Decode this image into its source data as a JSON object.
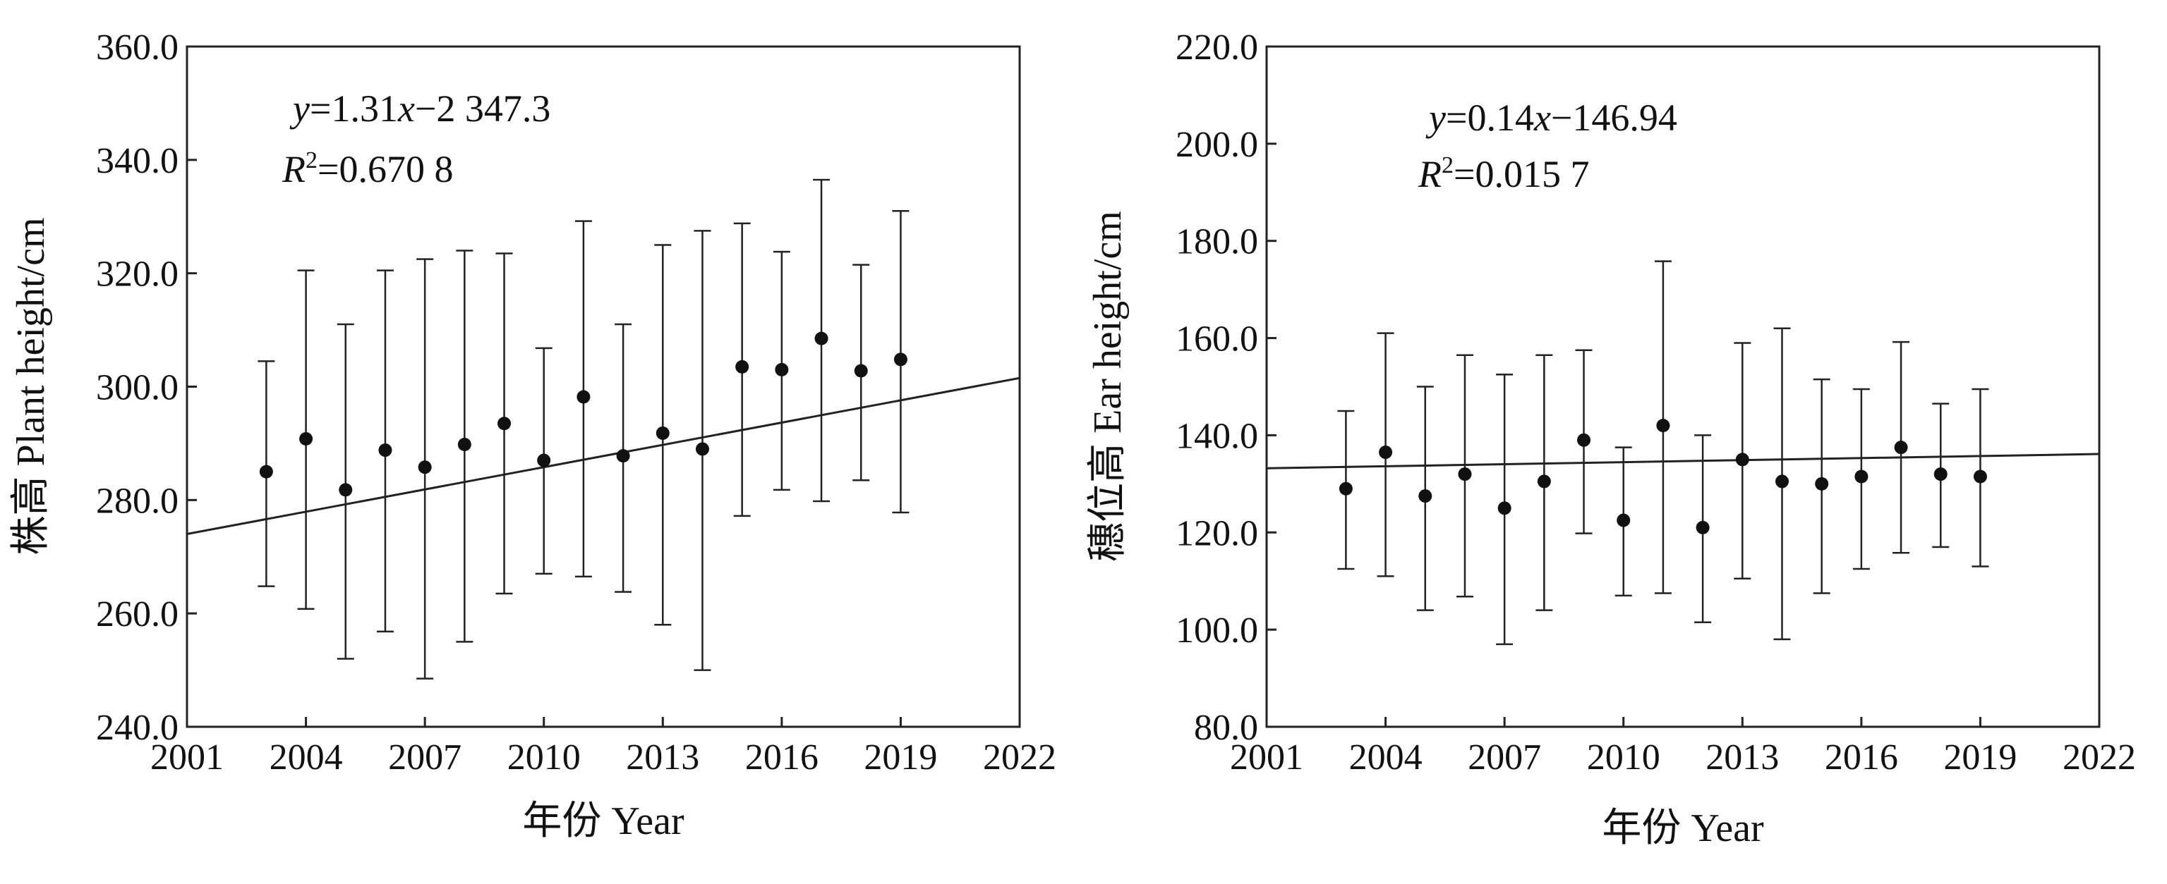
{
  "chart_data": [
    {
      "type": "scatter",
      "xlabel": "年份 Year",
      "ylabel": "株高 Plant height/cm",
      "xlim": [
        2001,
        2022
      ],
      "ylim": [
        240,
        360
      ],
      "x_ticks": [
        "2001",
        "2004",
        "2007",
        "2010",
        "2013",
        "2016",
        "2019",
        "2022"
      ],
      "y_ticks": [
        "240.0",
        "260.0",
        "280.0",
        "300.0",
        "320.0",
        "340.0",
        "360.0"
      ],
      "equation": "y=1.31x−2 347.3",
      "r_squared": "R2=0.670 8",
      "trendline": {
        "slope": 1.31,
        "intercept": -2347.3
      },
      "points": [
        {
          "x": 2003,
          "y": 285.0,
          "low": 264.8,
          "high": 304.5
        },
        {
          "x": 2004,
          "y": 290.8,
          "low": 260.8,
          "high": 320.5
        },
        {
          "x": 2005,
          "y": 281.8,
          "low": 252.0,
          "high": 311.0
        },
        {
          "x": 2006,
          "y": 288.8,
          "low": 256.8,
          "high": 320.5
        },
        {
          "x": 2007,
          "y": 285.8,
          "low": 248.5,
          "high": 322.5
        },
        {
          "x": 2008,
          "y": 289.8,
          "low": 255.0,
          "high": 324.0
        },
        {
          "x": 2009,
          "y": 293.5,
          "low": 263.5,
          "high": 323.5
        },
        {
          "x": 2010,
          "y": 287.0,
          "low": 267.0,
          "high": 306.8
        },
        {
          "x": 2011,
          "y": 298.2,
          "low": 266.5,
          "high": 329.2
        },
        {
          "x": 2012,
          "y": 287.8,
          "low": 263.8,
          "high": 311.0
        },
        {
          "x": 2013,
          "y": 291.8,
          "low": 258.0,
          "high": 325.0
        },
        {
          "x": 2014,
          "y": 289.0,
          "low": 250.0,
          "high": 327.5
        },
        {
          "x": 2015,
          "y": 303.5,
          "low": 277.2,
          "high": 328.8
        },
        {
          "x": 2016,
          "y": 303.0,
          "low": 281.8,
          "high": 323.8
        },
        {
          "x": 2017,
          "y": 308.5,
          "low": 279.8,
          "high": 336.5
        },
        {
          "x": 2018,
          "y": 302.8,
          "low": 283.5,
          "high": 321.5
        },
        {
          "x": 2019,
          "y": 304.8,
          "low": 277.8,
          "high": 331.0
        }
      ]
    },
    {
      "type": "scatter",
      "xlabel": "年份 Year",
      "ylabel": "穗位高 Ear height/cm",
      "xlim": [
        2001,
        2022
      ],
      "ylim": [
        80,
        220
      ],
      "x_ticks": [
        "2001",
        "2004",
        "2007",
        "2010",
        "2013",
        "2016",
        "2019",
        "2022"
      ],
      "y_ticks": [
        "80.0",
        "100.0",
        "120.0",
        "140.0",
        "160.0",
        "180.0",
        "200.0",
        "220.0"
      ],
      "equation": "y=0.14x−146.94",
      "r_squared": "R2=0.015 7",
      "trendline": {
        "slope": 0.14,
        "intercept": -146.94
      },
      "points": [
        {
          "x": 2003,
          "y": 129.0,
          "low": 112.5,
          "high": 145.0
        },
        {
          "x": 2004,
          "y": 136.5,
          "low": 111.0,
          "high": 161.0
        },
        {
          "x": 2005,
          "y": 127.5,
          "low": 104.0,
          "high": 150.0
        },
        {
          "x": 2006,
          "y": 132.0,
          "low": 106.8,
          "high": 156.5
        },
        {
          "x": 2007,
          "y": 125.0,
          "low": 97.0,
          "high": 152.5
        },
        {
          "x": 2008,
          "y": 130.5,
          "low": 104.0,
          "high": 156.5
        },
        {
          "x": 2009,
          "y": 139.0,
          "low": 119.8,
          "high": 157.5
        },
        {
          "x": 2010,
          "y": 122.5,
          "low": 107.0,
          "high": 137.5
        },
        {
          "x": 2011,
          "y": 142.0,
          "low": 107.5,
          "high": 175.8
        },
        {
          "x": 2012,
          "y": 121.0,
          "low": 101.5,
          "high": 140.0
        },
        {
          "x": 2013,
          "y": 135.0,
          "low": 110.5,
          "high": 159.0
        },
        {
          "x": 2014,
          "y": 130.5,
          "low": 98.0,
          "high": 162.0
        },
        {
          "x": 2015,
          "y": 130.0,
          "low": 107.5,
          "high": 151.5
        },
        {
          "x": 2016,
          "y": 131.5,
          "low": 112.5,
          "high": 149.5
        },
        {
          "x": 2017,
          "y": 137.5,
          "low": 115.8,
          "high": 159.2
        },
        {
          "x": 2018,
          "y": 132.0,
          "low": 117.0,
          "high": 146.5
        },
        {
          "x": 2019,
          "y": 131.5,
          "low": 113.0,
          "high": 149.5
        }
      ]
    }
  ]
}
